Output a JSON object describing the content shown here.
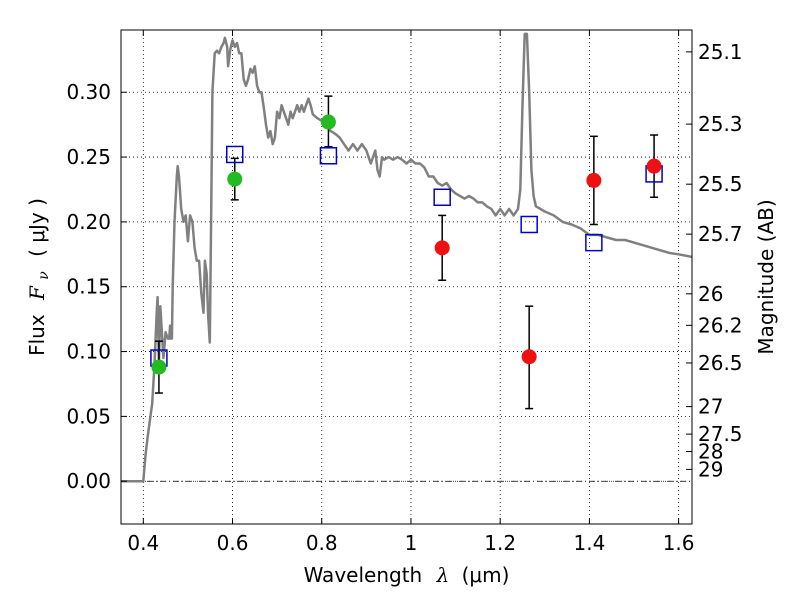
{
  "chart_data": {
    "type": "scatter",
    "title": "",
    "xlabel": {
      "prefix": "Wavelength",
      "symbol": "λ",
      "unit": "(μm)"
    },
    "ylabel": {
      "prefix": "Flux",
      "symbol": "F",
      "subscript": "ν",
      "unit": "( μJy )"
    },
    "ylabel_right": "Magnitude (AB)",
    "xlim": [
      0.35,
      1.63
    ],
    "ylim": [
      -0.033,
      0.348
    ],
    "grid": true,
    "x_ticks": [
      {
        "value": 0.4,
        "label": "0.4"
      },
      {
        "value": 0.6,
        "label": "0.6"
      },
      {
        "value": 0.8,
        "label": "0.8"
      },
      {
        "value": 1.0,
        "label": "1"
      },
      {
        "value": 1.2,
        "label": "1.2"
      },
      {
        "value": 1.4,
        "label": "1.4"
      },
      {
        "value": 1.6,
        "label": "1.6"
      }
    ],
    "y_ticks": [
      {
        "value": 0.0,
        "label": "0.00"
      },
      {
        "value": 0.05,
        "label": "0.05"
      },
      {
        "value": 0.1,
        "label": "0.10"
      },
      {
        "value": 0.15,
        "label": "0.15"
      },
      {
        "value": 0.2,
        "label": "0.20"
      },
      {
        "value": 0.25,
        "label": "0.25"
      },
      {
        "value": 0.3,
        "label": "0.30"
      }
    ],
    "mag_ticks": [
      {
        "mag": 25.1,
        "label": "25.1"
      },
      {
        "mag": 25.3,
        "label": "25.3"
      },
      {
        "mag": 25.5,
        "label": "25.5"
      },
      {
        "mag": 25.7,
        "label": "25.7"
      },
      {
        "mag": 26.0,
        "label": "26"
      },
      {
        "mag": 26.2,
        "label": "26.2"
      },
      {
        "mag": 26.5,
        "label": "26.5"
      },
      {
        "mag": 27.0,
        "label": "27"
      },
      {
        "mag": 27.5,
        "label": "27.5"
      },
      {
        "mag": 28.0,
        "label": "28"
      },
      {
        "mag": 29.0,
        "label": "29"
      }
    ],
    "series": [
      {
        "kind": "line",
        "color": "#808080",
        "points": [
          [
            0.35,
            0.0
          ],
          [
            0.4,
            0.0
          ],
          [
            0.405,
            0.02
          ],
          [
            0.41,
            0.035
          ],
          [
            0.42,
            0.06
          ],
          [
            0.425,
            0.09
          ],
          [
            0.43,
            0.13
          ],
          [
            0.432,
            0.142
          ],
          [
            0.435,
            0.09
          ],
          [
            0.438,
            0.135
          ],
          [
            0.44,
            0.125
          ],
          [
            0.445,
            0.095
          ],
          [
            0.45,
            0.115
          ],
          [
            0.455,
            0.11
          ],
          [
            0.458,
            0.11
          ],
          [
            0.46,
            0.12
          ],
          [
            0.462,
            0.11
          ],
          [
            0.464,
            0.11
          ],
          [
            0.466,
            0.15
          ],
          [
            0.47,
            0.2
          ],
          [
            0.475,
            0.235
          ],
          [
            0.477,
            0.243
          ],
          [
            0.48,
            0.235
          ],
          [
            0.485,
            0.21
          ],
          [
            0.49,
            0.2
          ],
          [
            0.495,
            0.205
          ],
          [
            0.5,
            0.185
          ],
          [
            0.505,
            0.205
          ],
          [
            0.51,
            0.2
          ],
          [
            0.515,
            0.18
          ],
          [
            0.52,
            0.17
          ],
          [
            0.525,
            0.17
          ],
          [
            0.53,
            0.145
          ],
          [
            0.535,
            0.13
          ],
          [
            0.538,
            0.17
          ],
          [
            0.542,
            0.16
          ],
          [
            0.545,
            0.13
          ],
          [
            0.549,
            0.107
          ],
          [
            0.552,
            0.2
          ],
          [
            0.555,
            0.3
          ],
          [
            0.56,
            0.33
          ],
          [
            0.565,
            0.332
          ],
          [
            0.57,
            0.33
          ],
          [
            0.575,
            0.335
          ],
          [
            0.58,
            0.338
          ],
          [
            0.583,
            0.342
          ],
          [
            0.588,
            0.335
          ],
          [
            0.59,
            0.32
          ],
          [
            0.595,
            0.333
          ],
          [
            0.6,
            0.34
          ],
          [
            0.605,
            0.335
          ],
          [
            0.61,
            0.338
          ],
          [
            0.615,
            0.33
          ],
          [
            0.62,
            0.33
          ],
          [
            0.625,
            0.31
          ],
          [
            0.63,
            0.305
          ],
          [
            0.635,
            0.31
          ],
          [
            0.64,
            0.318
          ],
          [
            0.645,
            0.315
          ],
          [
            0.65,
            0.32
          ],
          [
            0.655,
            0.305
          ],
          [
            0.66,
            0.3
          ],
          [
            0.665,
            0.3
          ],
          [
            0.67,
            0.288
          ],
          [
            0.675,
            0.275
          ],
          [
            0.68,
            0.265
          ],
          [
            0.685,
            0.27
          ],
          [
            0.69,
            0.26
          ],
          [
            0.695,
            0.265
          ],
          [
            0.7,
            0.285
          ],
          [
            0.705,
            0.28
          ],
          [
            0.71,
            0.29
          ],
          [
            0.715,
            0.285
          ],
          [
            0.72,
            0.28
          ],
          [
            0.725,
            0.275
          ],
          [
            0.73,
            0.285
          ],
          [
            0.735,
            0.28
          ],
          [
            0.74,
            0.285
          ],
          [
            0.745,
            0.29
          ],
          [
            0.75,
            0.285
          ],
          [
            0.755,
            0.29
          ],
          [
            0.76,
            0.285
          ],
          [
            0.765,
            0.29
          ],
          [
            0.77,
            0.295
          ],
          [
            0.775,
            0.29
          ],
          [
            0.78,
            0.283
          ],
          [
            0.79,
            0.28
          ],
          [
            0.8,
            0.278
          ],
          [
            0.81,
            0.275
          ],
          [
            0.82,
            0.27
          ],
          [
            0.83,
            0.268
          ],
          [
            0.84,
            0.265
          ],
          [
            0.85,
            0.26
          ],
          [
            0.86,
            0.255
          ],
          [
            0.87,
            0.26
          ],
          [
            0.88,
            0.255
          ],
          [
            0.89,
            0.26
          ],
          [
            0.9,
            0.255
          ],
          [
            0.91,
            0.245
          ],
          [
            0.915,
            0.25
          ],
          [
            0.92,
            0.255
          ],
          [
            0.925,
            0.24
          ],
          [
            0.93,
            0.235
          ],
          [
            0.935,
            0.25
          ],
          [
            0.94,
            0.248
          ],
          [
            0.95,
            0.25
          ],
          [
            0.96,
            0.248
          ],
          [
            0.97,
            0.25
          ],
          [
            0.98,
            0.248
          ],
          [
            0.99,
            0.245
          ],
          [
            1.0,
            0.248
          ],
          [
            1.01,
            0.245
          ],
          [
            1.02,
            0.245
          ],
          [
            1.03,
            0.242
          ],
          [
            1.04,
            0.235
          ],
          [
            1.05,
            0.235
          ],
          [
            1.06,
            0.23
          ],
          [
            1.07,
            0.228
          ],
          [
            1.08,
            0.23
          ],
          [
            1.09,
            0.225
          ],
          [
            1.1,
            0.222
          ],
          [
            1.11,
            0.22
          ],
          [
            1.12,
            0.218
          ],
          [
            1.13,
            0.22
          ],
          [
            1.14,
            0.218
          ],
          [
            1.15,
            0.215
          ],
          [
            1.16,
            0.215
          ],
          [
            1.17,
            0.212
          ],
          [
            1.18,
            0.21
          ],
          [
            1.19,
            0.205
          ],
          [
            1.2,
            0.21
          ],
          [
            1.21,
            0.205
          ],
          [
            1.22,
            0.21
          ],
          [
            1.23,
            0.205
          ],
          [
            1.24,
            0.21
          ],
          [
            1.245,
            0.225
          ],
          [
            1.25,
            0.29
          ],
          [
            1.255,
            0.345
          ],
          [
            1.26,
            0.345
          ],
          [
            1.265,
            0.3
          ],
          [
            1.27,
            0.24
          ],
          [
            1.275,
            0.22
          ],
          [
            1.28,
            0.212
          ],
          [
            1.3,
            0.208
          ],
          [
            1.32,
            0.205
          ],
          [
            1.34,
            0.2
          ],
          [
            1.36,
            0.198
          ],
          [
            1.38,
            0.195
          ],
          [
            1.4,
            0.19
          ],
          [
            1.42,
            0.19
          ],
          [
            1.44,
            0.188
          ],
          [
            1.46,
            0.186
          ],
          [
            1.48,
            0.186
          ],
          [
            1.5,
            0.184
          ],
          [
            1.52,
            0.182
          ],
          [
            1.54,
            0.18
          ],
          [
            1.56,
            0.178
          ],
          [
            1.58,
            0.176
          ],
          [
            1.6,
            0.175
          ],
          [
            1.63,
            0.173
          ]
        ]
      },
      {
        "kind": "squares",
        "color": "#0000cc",
        "points": [
          [
            0.435,
            0.095
          ],
          [
            0.605,
            0.252
          ],
          [
            0.815,
            0.251
          ],
          [
            1.07,
            0.219
          ],
          [
            1.265,
            0.198
          ],
          [
            1.41,
            0.184
          ],
          [
            1.545,
            0.237
          ]
        ]
      },
      {
        "kind": "circles",
        "color": "#22bb22",
        "points": [
          {
            "x": 0.435,
            "y": 0.088,
            "ylo": 0.068,
            "yhi": 0.108
          },
          {
            "x": 0.605,
            "y": 0.233,
            "ylo": 0.217,
            "yhi": 0.249
          },
          {
            "x": 0.815,
            "y": 0.277,
            "ylo": 0.258,
            "yhi": 0.297
          }
        ]
      },
      {
        "kind": "circles",
        "color": "#ee1111",
        "points": [
          {
            "x": 1.07,
            "y": 0.18,
            "ylo": 0.155,
            "yhi": 0.205
          },
          {
            "x": 1.265,
            "y": 0.096,
            "ylo": 0.056,
            "yhi": 0.135
          },
          {
            "x": 1.41,
            "y": 0.232,
            "ylo": 0.198,
            "yhi": 0.266
          },
          {
            "x": 1.545,
            "y": 0.243,
            "ylo": 0.219,
            "yhi": 0.267
          }
        ]
      }
    ]
  }
}
